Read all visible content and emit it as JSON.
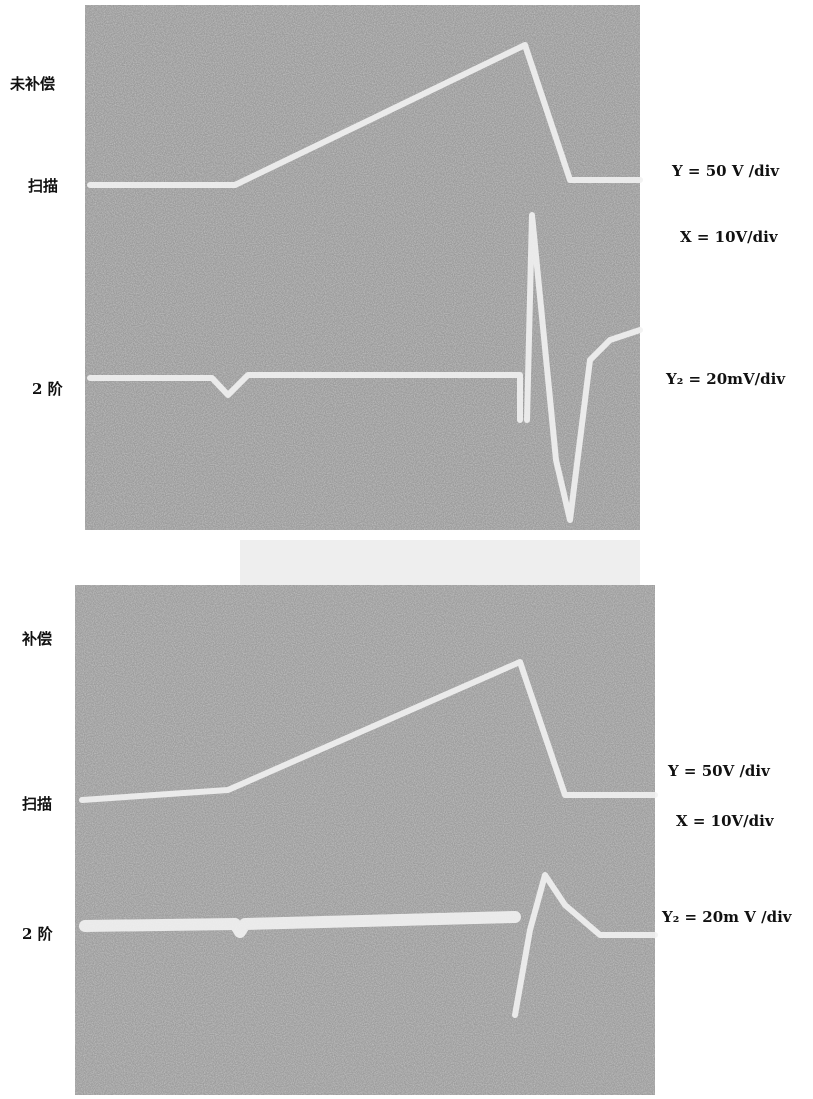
{
  "panels": [
    {
      "left_labels": [
        "未补偿",
        "扫描",
        "2 阶"
      ],
      "right_labels": [
        "Y = 50 V /div",
        "X = 10V/div",
        "Y₂ = 20mV/div"
      ]
    },
    {
      "left_labels": [
        "补偿",
        "扫描",
        "2 阶"
      ],
      "right_labels": [
        "Y = 50V /div",
        "X = 10V/div",
        "Y₂ = 20m V /div"
      ]
    }
  ]
}
